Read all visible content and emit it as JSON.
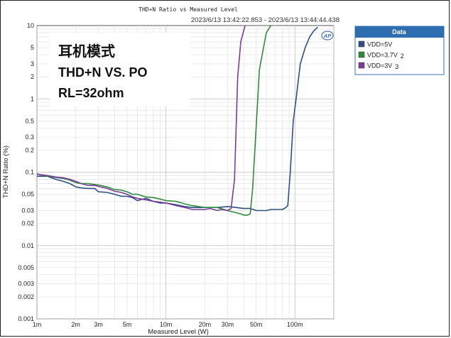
{
  "chart_data": {
    "type": "line",
    "title": "THD+N Ratio vs Measured Level",
    "time_range": "2023/6/13 13:42:22.853 - 2023/6/13 13:44:44.438",
    "xlabel": "Measured Level (W)",
    "ylabel": "THD+N Ratio (%)",
    "x_scale": "log",
    "y_scale": "log",
    "xlim": [
      0.001,
      0.2
    ],
    "ylim": [
      0.001,
      10
    ],
    "grid": true,
    "x_ticks": [
      "1m",
      "2m",
      "3m",
      "5m",
      "10m",
      "20m",
      "30m",
      "50m",
      "100m"
    ],
    "y_ticks": [
      "10",
      "5",
      "3",
      "2",
      "1",
      "0.5",
      "0.3",
      "0.2",
      "0.1",
      "0.05",
      "0.03",
      "0.02",
      "0.01",
      "0.005",
      "0.003",
      "0.002",
      "0.001"
    ],
    "annotation": [
      "耳机模式",
      "THD+N VS. PO",
      "RL=32ohm"
    ],
    "logo": "AP",
    "legend": {
      "position": "top-right",
      "header": "Data",
      "entries": [
        {
          "label": "VDD=5V",
          "suffix": ""
        },
        {
          "label": "VDD=3.7V",
          "suffix": "2"
        },
        {
          "label": "VDD=3V",
          "suffix": "3"
        }
      ]
    },
    "series": [
      {
        "name": "VDD=5V",
        "color": "#2e4f86",
        "x": [
          0.001,
          0.0012,
          0.0014,
          0.0016,
          0.0018,
          0.002,
          0.0022,
          0.0025,
          0.0028,
          0.003,
          0.0035,
          0.004,
          0.0045,
          0.005,
          0.0055,
          0.006,
          0.007,
          0.008,
          0.009,
          0.01,
          0.012,
          0.014,
          0.016,
          0.018,
          0.02,
          0.025,
          0.03,
          0.035,
          0.04,
          0.045,
          0.05,
          0.055,
          0.06,
          0.065,
          0.07,
          0.075,
          0.08,
          0.085,
          0.088,
          0.092,
          0.097,
          0.102,
          0.11,
          0.12,
          0.13,
          0.14,
          0.15
        ],
        "y": [
          0.088,
          0.088,
          0.08,
          0.075,
          0.07,
          0.063,
          0.061,
          0.06,
          0.06,
          0.054,
          0.053,
          0.05,
          0.047,
          0.047,
          0.045,
          0.041,
          0.044,
          0.04,
          0.038,
          0.038,
          0.036,
          0.034,
          0.033,
          0.033,
          0.033,
          0.033,
          0.034,
          0.033,
          0.032,
          0.032,
          0.03,
          0.03,
          0.03,
          0.031,
          0.031,
          0.031,
          0.031,
          0.033,
          0.035,
          0.1,
          0.5,
          1.0,
          3.0,
          5.0,
          7.0,
          8.5,
          9.5
        ]
      },
      {
        "name": "VDD=3.7V",
        "color": "#2e8b3c",
        "x": [
          0.001,
          0.0012,
          0.0014,
          0.0016,
          0.0018,
          0.002,
          0.0022,
          0.0025,
          0.0028,
          0.003,
          0.0035,
          0.004,
          0.0045,
          0.005,
          0.0055,
          0.006,
          0.007,
          0.008,
          0.009,
          0.01,
          0.012,
          0.014,
          0.016,
          0.018,
          0.02,
          0.025,
          0.03,
          0.035,
          0.038,
          0.04,
          0.043,
          0.045,
          0.047,
          0.05,
          0.053,
          0.057,
          0.06,
          0.065
        ],
        "y": [
          0.095,
          0.088,
          0.085,
          0.082,
          0.078,
          0.072,
          0.07,
          0.07,
          0.068,
          0.067,
          0.063,
          0.058,
          0.057,
          0.054,
          0.05,
          0.05,
          0.046,
          0.045,
          0.043,
          0.041,
          0.04,
          0.037,
          0.035,
          0.034,
          0.033,
          0.033,
          0.03,
          0.028,
          0.027,
          0.026,
          0.026,
          0.027,
          0.06,
          0.4,
          2.5,
          5.0,
          8.0,
          10.0
        ]
      },
      {
        "name": "VDD=3V",
        "color": "#7a3c9a",
        "x": [
          0.001,
          0.0012,
          0.0014,
          0.0016,
          0.0018,
          0.002,
          0.0022,
          0.0025,
          0.0028,
          0.003,
          0.0035,
          0.004,
          0.0045,
          0.005,
          0.0055,
          0.006,
          0.007,
          0.008,
          0.009,
          0.01,
          0.012,
          0.014,
          0.016,
          0.018,
          0.02,
          0.022,
          0.025,
          0.027,
          0.03,
          0.032,
          0.034,
          0.036,
          0.038,
          0.041
        ],
        "y": [
          0.094,
          0.09,
          0.086,
          0.084,
          0.08,
          0.075,
          0.07,
          0.066,
          0.066,
          0.064,
          0.06,
          0.055,
          0.053,
          0.05,
          0.046,
          0.044,
          0.042,
          0.04,
          0.039,
          0.038,
          0.035,
          0.033,
          0.031,
          0.031,
          0.031,
          0.032,
          0.03,
          0.031,
          0.03,
          0.032,
          0.08,
          2.0,
          6.0,
          10.0
        ]
      }
    ]
  }
}
